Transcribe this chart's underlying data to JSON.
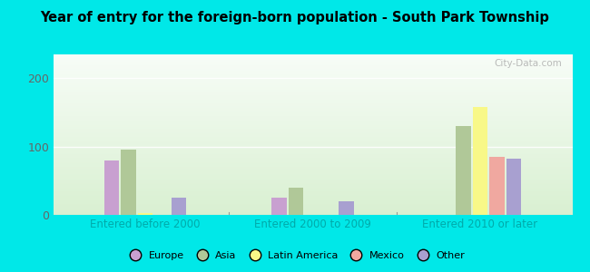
{
  "title": "Year of entry for the foreign-born population - South Park Township",
  "groups": [
    "Entered before 2000",
    "Entered 2000 to 2009",
    "Entered 2010 or later"
  ],
  "categories": [
    "Europe",
    "Asia",
    "Latin America",
    "Mexico",
    "Other"
  ],
  "colors": [
    "#c8a0d0",
    "#b0c898",
    "#f8f888",
    "#f0a8a0",
    "#a8a0d0"
  ],
  "values": [
    [
      80,
      95,
      2,
      0,
      25
    ],
    [
      25,
      40,
      0,
      0,
      20
    ],
    [
      0,
      130,
      158,
      85,
      82
    ]
  ],
  "ylim": [
    0,
    235
  ],
  "yticks": [
    0,
    100,
    200
  ],
  "background_color": "#00e8e8",
  "xlabel_color": "#00aaaa",
  "title_color": "#000000",
  "watermark": "City-Data.com"
}
